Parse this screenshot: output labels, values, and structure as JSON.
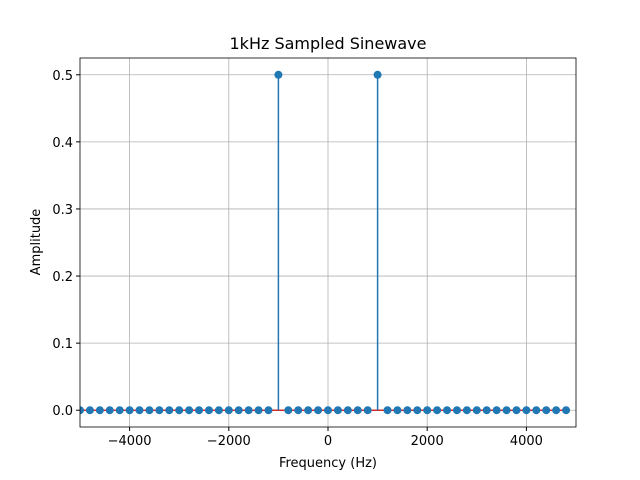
{
  "chart_data": {
    "type": "stem",
    "title": "1kHz Sampled Sinewave",
    "xlabel": "Frequency (Hz)",
    "ylabel": "Amplitude",
    "x": [
      -5000,
      -4800,
      -4600,
      -4400,
      -4200,
      -4000,
      -3800,
      -3600,
      -3400,
      -3200,
      -3000,
      -2800,
      -2600,
      -2400,
      -2200,
      -2000,
      -1800,
      -1600,
      -1400,
      -1200,
      -1000,
      -800,
      -600,
      -400,
      -200,
      0,
      200,
      400,
      600,
      800,
      1000,
      1200,
      1400,
      1600,
      1800,
      2000,
      2200,
      2400,
      2600,
      2800,
      3000,
      3200,
      3400,
      3600,
      3800,
      4000,
      4200,
      4400,
      4600,
      4800
    ],
    "values": [
      0,
      0,
      0,
      0,
      0,
      0,
      0,
      0,
      0,
      0,
      0,
      0,
      0,
      0,
      0,
      0,
      0,
      0,
      0,
      0,
      0.5,
      0,
      0,
      0,
      0,
      0,
      0,
      0,
      0,
      0,
      0.5,
      0,
      0,
      0,
      0,
      0,
      0,
      0,
      0,
      0,
      0,
      0,
      0,
      0,
      0,
      0,
      0,
      0,
      0,
      0
    ],
    "color": "#1f77b4",
    "baseline_color": "#d62728",
    "xlim": [
      -5000,
      5000
    ],
    "ylim": [
      -0.025,
      0.525
    ],
    "xticks": [
      {
        "value": -4000,
        "label": "−4000"
      },
      {
        "value": -2000,
        "label": "−2000"
      },
      0,
      2000,
      4000
    ],
    "yticks": [
      {
        "value": 0,
        "label": "0.0"
      },
      0.1,
      0.2,
      0.3,
      0.4,
      0.5
    ],
    "grid": true
  }
}
